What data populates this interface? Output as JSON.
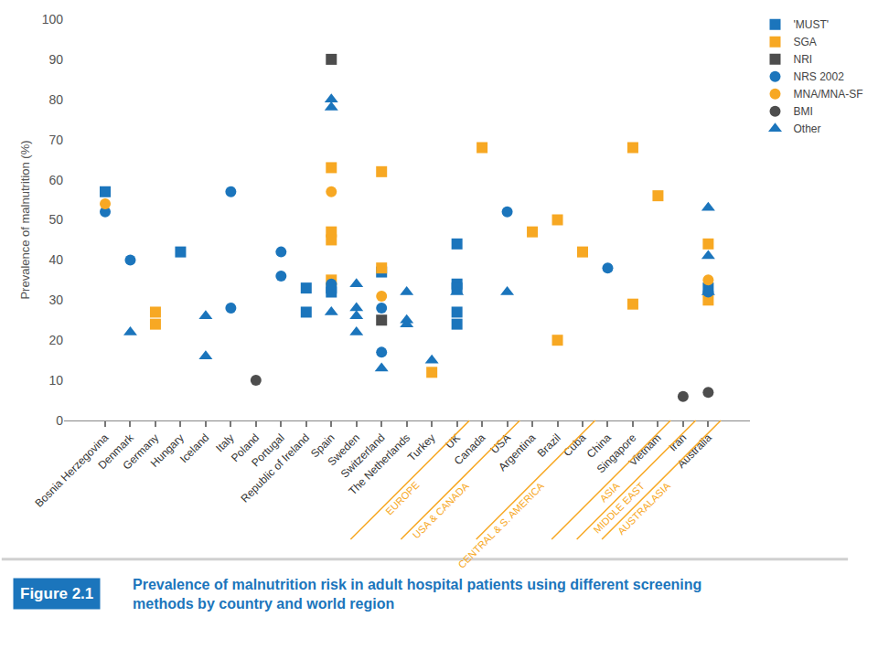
{
  "chart_data": {
    "type": "scatter",
    "title": "Prevalence of malnutrition risk in adult hospital patients using different screening methods by country and world region",
    "figure_label": "Figure 2.1",
    "y_label": "Prevalence of malnutrition (%)",
    "categories": [
      "Bosnia Herzegovina",
      "Denmark",
      "Germany",
      "Hungary",
      "Iceland",
      "Italy",
      "Poland",
      "Portugal",
      "Republic of Ireland",
      "Spain",
      "Sweden",
      "Switzerland",
      "The Netherlands",
      "Turkey",
      "UK",
      "Canada",
      "USA",
      "Argentina",
      "Brazil",
      "Cuba",
      "China",
      "Singapore",
      "Vietnam",
      "Iran",
      "Australia"
    ],
    "regions": [
      {
        "label": "EUROPE",
        "end": "UK"
      },
      {
        "label": "USA & CANADA",
        "end": "USA"
      },
      {
        "label": "CENTRAL & S. AMERICA",
        "end": "Cuba"
      },
      {
        "label": "ASIA",
        "end": "Vietnam"
      },
      {
        "label": "MIDDLE EAST",
        "end": "Iran"
      },
      {
        "label": "AUSTRALASIA",
        "end": "Australia"
      }
    ],
    "series": [
      {
        "name": "'MUST'",
        "color": "#1b75bc",
        "marker": "square",
        "x": [
          "Bosnia Herzegovina",
          "Hungary",
          "Republic of Ireland",
          "Republic of Ireland",
          "Spain",
          "Spain",
          "Switzerland",
          "UK",
          "UK",
          "UK",
          "UK",
          "UK",
          "Australia"
        ],
        "values": [
          57,
          42,
          33,
          27,
          33,
          32,
          37,
          44,
          34,
          33,
          27,
          24,
          33
        ]
      },
      {
        "name": "SGA",
        "color": "#f7a823",
        "marker": "square",
        "x": [
          "Germany",
          "Germany",
          "Spain",
          "Spain",
          "Spain",
          "Spain",
          "Switzerland",
          "Switzerland",
          "Turkey",
          "Canada",
          "Argentina",
          "Brazil",
          "Brazil",
          "Cuba",
          "Singapore",
          "Singapore",
          "Vietnam",
          "Australia",
          "Australia"
        ],
        "values": [
          27,
          24,
          63,
          47,
          45,
          35,
          62,
          38,
          12,
          68,
          47,
          50,
          20,
          42,
          68,
          29,
          56,
          44,
          30
        ]
      },
      {
        "name": "NRI",
        "color": "#4d4d4d",
        "marker": "square",
        "x": [
          "Spain",
          "Switzerland"
        ],
        "values": [
          90,
          25
        ]
      },
      {
        "name": "NRS 2002",
        "color": "#1b75bc",
        "marker": "circle",
        "x": [
          "Bosnia Herzegovina",
          "Denmark",
          "Italy",
          "Italy",
          "Portugal",
          "Portugal",
          "Spain",
          "Switzerland",
          "Switzerland",
          "USA",
          "China",
          "Australia"
        ],
        "values": [
          52,
          40,
          57,
          28,
          42,
          36,
          34,
          28,
          17,
          52,
          38,
          32
        ]
      },
      {
        "name": "MNA/MNA-SF",
        "color": "#f7a823",
        "marker": "circle",
        "x": [
          "Bosnia Herzegovina",
          "Spain",
          "Switzerland",
          "Australia"
        ],
        "values": [
          54,
          57,
          31,
          35
        ]
      },
      {
        "name": "BMI",
        "color": "#4d4d4d",
        "marker": "circle",
        "x": [
          "Poland",
          "Iran",
          "Australia"
        ],
        "values": [
          10,
          6,
          7
        ]
      },
      {
        "name": "Other",
        "color": "#1b75bc",
        "marker": "triangle",
        "x": [
          "Denmark",
          "Iceland",
          "Iceland",
          "Spain",
          "Spain",
          "Spain",
          "Sweden",
          "Sweden",
          "Sweden",
          "Sweden",
          "Switzerland",
          "The Netherlands",
          "The Netherlands",
          "The Netherlands",
          "Turkey",
          "UK",
          "USA",
          "Australia",
          "Australia",
          "Australia"
        ],
        "values": [
          22,
          26,
          16,
          80,
          78,
          27,
          34,
          28,
          26,
          22,
          13,
          32,
          25,
          24,
          15,
          32,
          32,
          53,
          41,
          32
        ]
      }
    ],
    "ylim": [
      0,
      100
    ],
    "yticks": [
      0,
      10,
      20,
      30,
      40,
      50,
      60,
      70,
      80,
      90,
      100
    ],
    "grid": false,
    "legend": "top right",
    "region_color": "#f7a823",
    "title_color": "#1b75bc"
  }
}
